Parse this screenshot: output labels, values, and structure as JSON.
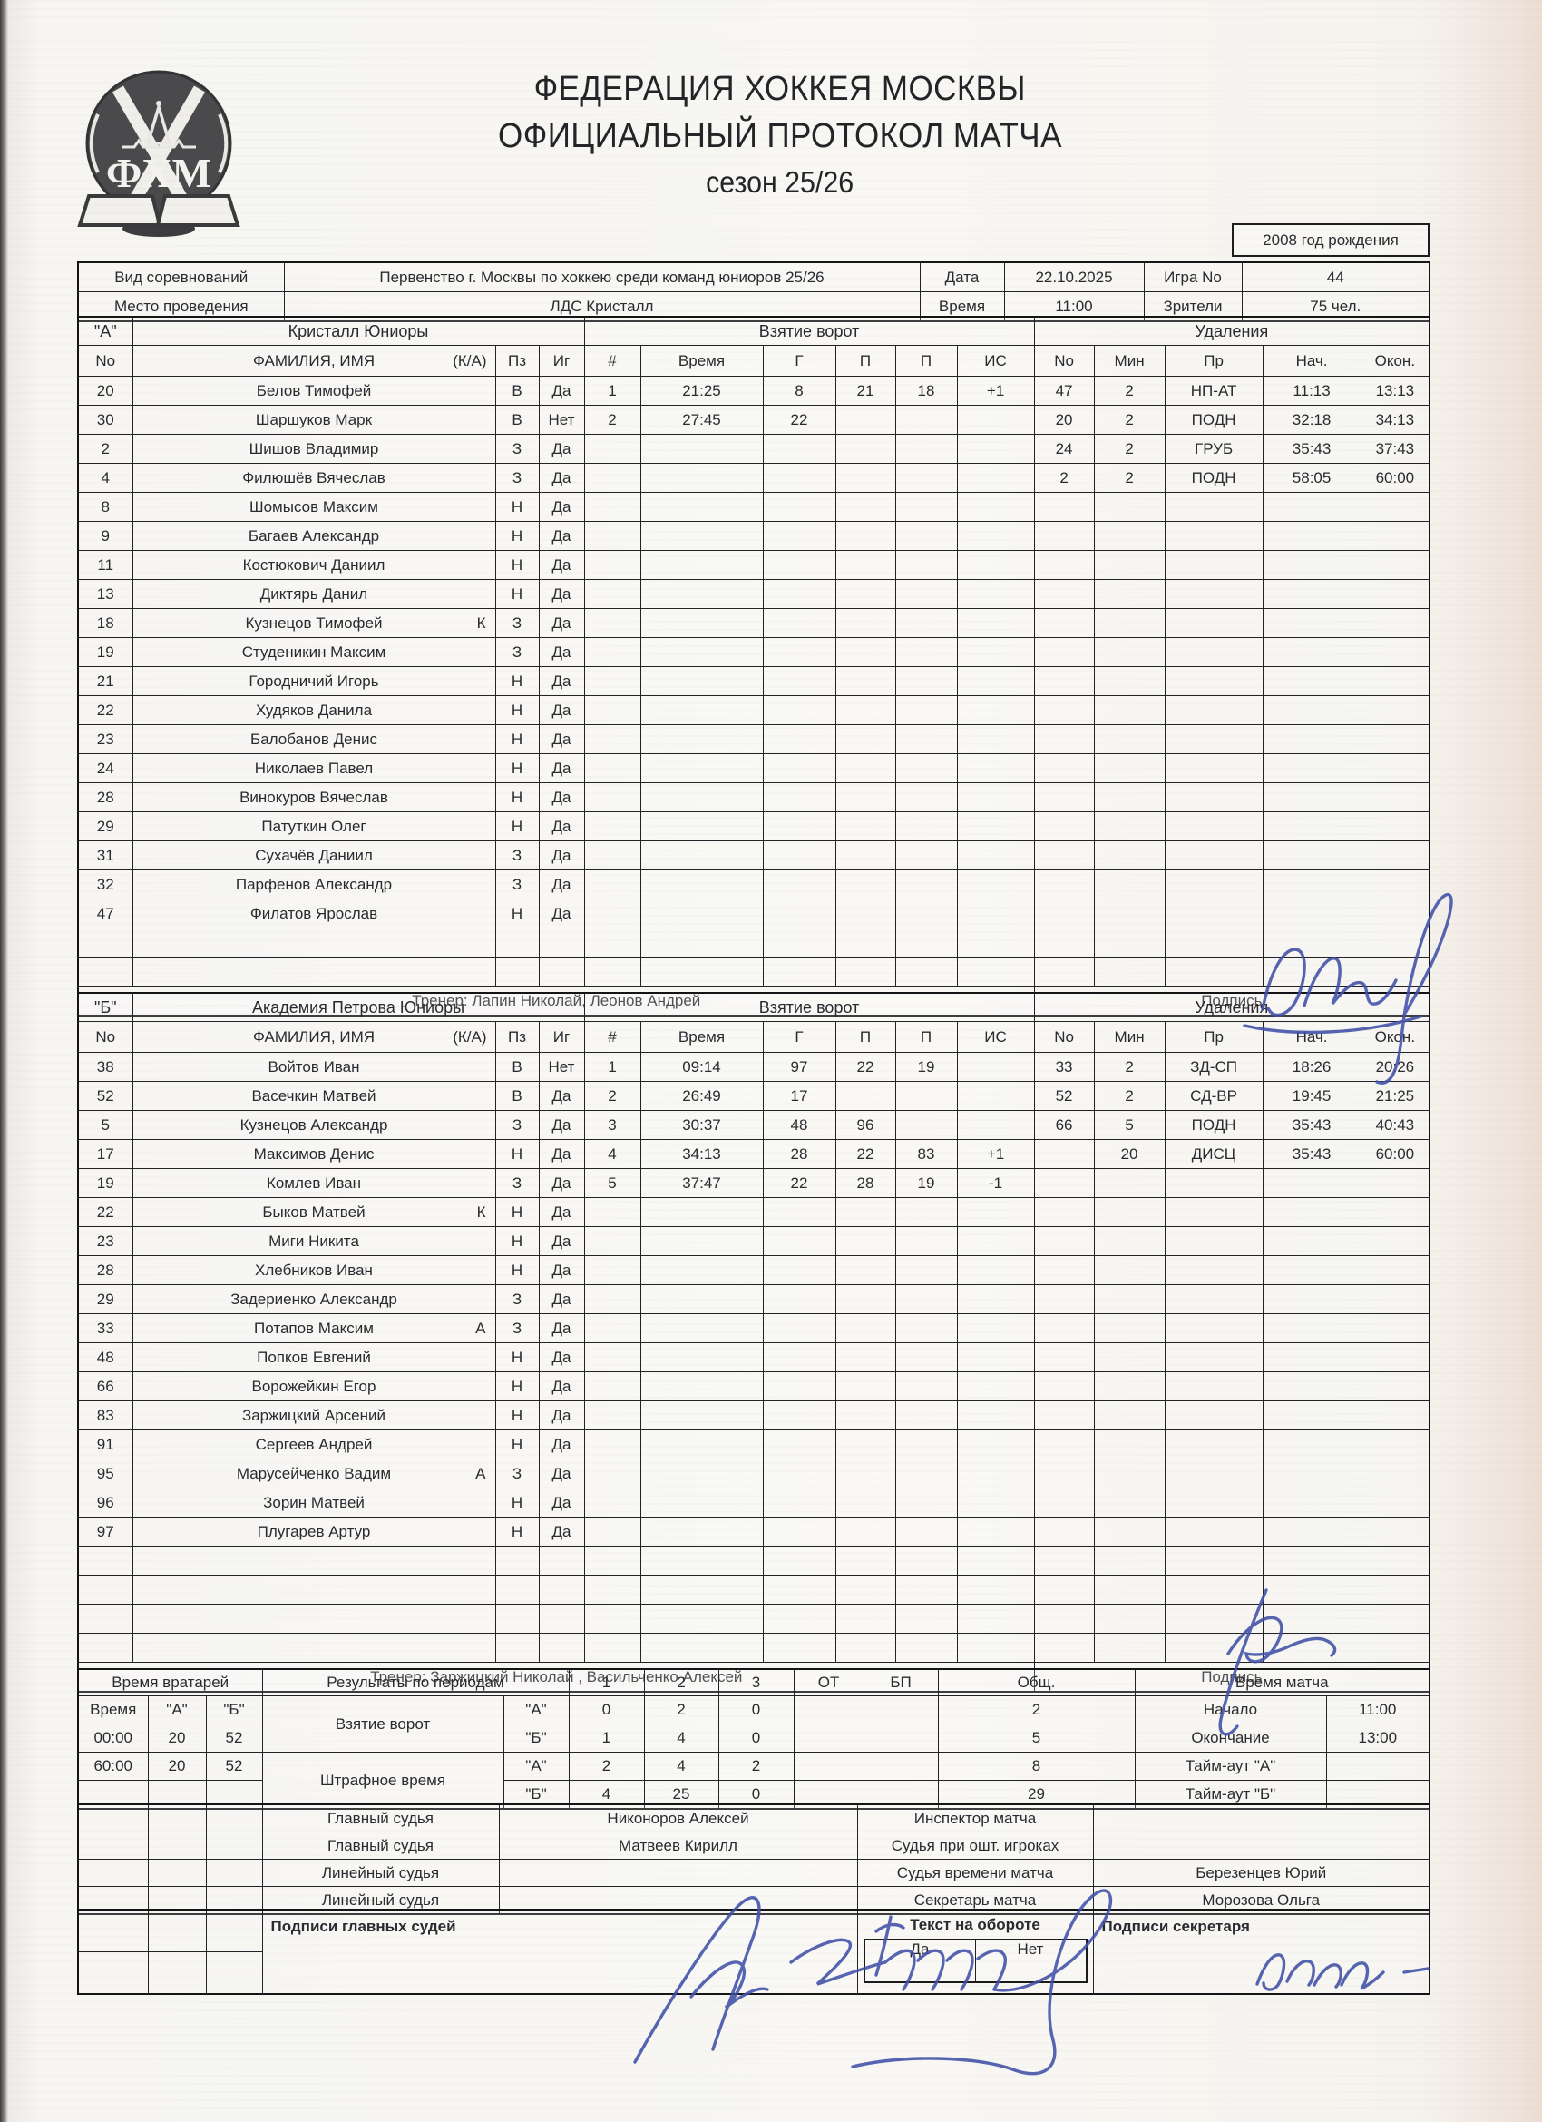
{
  "page": {
    "title_line1": "ФЕДЕРАЦИЯ ХОККЕЯ МОСКВЫ",
    "title_line2": "ОФИЦИАЛЬНЫЙ ПРОТОКОЛ МАТЧА",
    "title_line3": "сезон 25/26",
    "birth_year": "2008 год рождения",
    "logo_text": "ФХМ"
  },
  "info": {
    "competition_label": "Вид соревнований",
    "competition": "Первенство г. Москвы по хоккею среди команд юниоров 25/26",
    "date_label": "Дата",
    "date": "22.10.2025",
    "game_label": "Игра No",
    "game": "44",
    "venue_label": "Место проведения",
    "venue": "ЛДС Кристалл",
    "time_label": "Время",
    "time": "11:00",
    "spectators_label": "Зрители",
    "spectators": "75 чел."
  },
  "roster_labels": {
    "goals_section": "Взятие ворот",
    "penalties_section": "Удаления",
    "no": "No",
    "name": "ФАМИЛИЯ, ИМЯ",
    "ka": "(К/А)",
    "pos": "Пз",
    "ig": "Иг",
    "num": "#",
    "time": "Время",
    "g": "Г",
    "a1": "П",
    "a2": "П",
    "is": "ИС",
    "pen_no": "No",
    "pen_min": "Мин",
    "pen_code": "Пр",
    "pen_start": "Нач.",
    "pen_end": "Окон.",
    "signature_label": "Подпись"
  },
  "team_a": {
    "letter": "\"А\"",
    "name": "Кристалл Юниоры",
    "coach": "Тренер: Лапин Николай, Леонов Андрей",
    "empty_rows": 2,
    "players": [
      {
        "no": "20",
        "name": "Белов Тимофей",
        "ka": "",
        "pos": "В",
        "ig": "Да"
      },
      {
        "no": "30",
        "name": "Шаршуков Марк",
        "ka": "",
        "pos": "В",
        "ig": "Нет"
      },
      {
        "no": "2",
        "name": "Шишов Владимир",
        "ka": "",
        "pos": "З",
        "ig": "Да"
      },
      {
        "no": "4",
        "name": "Филюшёв Вячеслав",
        "ka": "",
        "pos": "З",
        "ig": "Да"
      },
      {
        "no": "8",
        "name": "Шомысов Максим",
        "ka": "",
        "pos": "Н",
        "ig": "Да"
      },
      {
        "no": "9",
        "name": "Багаев Александр",
        "ka": "",
        "pos": "Н",
        "ig": "Да"
      },
      {
        "no": "11",
        "name": "Костюкович Даниил",
        "ka": "",
        "pos": "Н",
        "ig": "Да"
      },
      {
        "no": "13",
        "name": "Диктярь Данил",
        "ka": "",
        "pos": "Н",
        "ig": "Да"
      },
      {
        "no": "18",
        "name": "Кузнецов Тимофей",
        "ka": "К",
        "pos": "З",
        "ig": "Да"
      },
      {
        "no": "19",
        "name": "Студеникин Максим",
        "ka": "",
        "pos": "З",
        "ig": "Да"
      },
      {
        "no": "21",
        "name": "Городничий Игорь",
        "ka": "",
        "pos": "Н",
        "ig": "Да"
      },
      {
        "no": "22",
        "name": "Худяков Данила",
        "ka": "",
        "pos": "Н",
        "ig": "Да"
      },
      {
        "no": "23",
        "name": "Балобанов Денис",
        "ka": "",
        "pos": "Н",
        "ig": "Да"
      },
      {
        "no": "24",
        "name": "Николаев Павел",
        "ka": "",
        "pos": "Н",
        "ig": "Да"
      },
      {
        "no": "28",
        "name": "Винокуров Вячеслав",
        "ka": "",
        "pos": "Н",
        "ig": "Да"
      },
      {
        "no": "29",
        "name": "Патуткин Олег",
        "ka": "",
        "pos": "Н",
        "ig": "Да"
      },
      {
        "no": "31",
        "name": "Сухачёв Даниил",
        "ka": "",
        "pos": "З",
        "ig": "Да"
      },
      {
        "no": "32",
        "name": "Парфенов Александр",
        "ka": "",
        "pos": "З",
        "ig": "Да"
      },
      {
        "no": "47",
        "name": "Филатов Ярослав",
        "ka": "",
        "pos": "Н",
        "ig": "Да"
      }
    ],
    "goals": [
      {
        "n": "1",
        "time": "21:25",
        "g": "8",
        "a1": "21",
        "a2": "18",
        "is": "+1"
      },
      {
        "n": "2",
        "time": "27:45",
        "g": "22",
        "a1": "",
        "a2": "",
        "is": ""
      }
    ],
    "penalties": [
      {
        "no": "47",
        "min": "2",
        "code": "НП-АТ",
        "start": "11:13",
        "end": "13:13"
      },
      {
        "no": "20",
        "min": "2",
        "code": "ПОДН",
        "start": "32:18",
        "end": "34:13"
      },
      {
        "no": "24",
        "min": "2",
        "code": "ГРУБ",
        "start": "35:43",
        "end": "37:43"
      },
      {
        "no": "2",
        "min": "2",
        "code": "ПОДН",
        "start": "58:05",
        "end": "60:00"
      }
    ]
  },
  "team_b": {
    "letter": "\"Б\"",
    "name": "Академия Петрова Юниоры",
    "coach": "Тренер: Заржицкий Николай , Васильченко Алексей",
    "empty_rows": 4,
    "players": [
      {
        "no": "38",
        "name": "Войтов Иван",
        "ka": "",
        "pos": "В",
        "ig": "Нет"
      },
      {
        "no": "52",
        "name": "Васечкин Матвей",
        "ka": "",
        "pos": "В",
        "ig": "Да"
      },
      {
        "no": "5",
        "name": "Кузнецов Александр",
        "ka": "",
        "pos": "З",
        "ig": "Да"
      },
      {
        "no": "17",
        "name": "Максимов Денис",
        "ka": "",
        "pos": "Н",
        "ig": "Да"
      },
      {
        "no": "19",
        "name": "Комлев Иван",
        "ka": "",
        "pos": "З",
        "ig": "Да"
      },
      {
        "no": "22",
        "name": "Быков Матвей",
        "ka": "К",
        "pos": "Н",
        "ig": "Да"
      },
      {
        "no": "23",
        "name": "Миги Никита",
        "ka": "",
        "pos": "Н",
        "ig": "Да"
      },
      {
        "no": "28",
        "name": "Хлебников Иван",
        "ka": "",
        "pos": "Н",
        "ig": "Да"
      },
      {
        "no": "29",
        "name": "Задериенко Александр",
        "ka": "",
        "pos": "З",
        "ig": "Да"
      },
      {
        "no": "33",
        "name": "Потапов Максим",
        "ka": "А",
        "pos": "З",
        "ig": "Да"
      },
      {
        "no": "48",
        "name": "Попков Евгений",
        "ka": "",
        "pos": "Н",
        "ig": "Да"
      },
      {
        "no": "66",
        "name": "Ворожейкин Егор",
        "ka": "",
        "pos": "Н",
        "ig": "Да"
      },
      {
        "no": "83",
        "name": "Заржицкий Арсений",
        "ka": "",
        "pos": "Н",
        "ig": "Да"
      },
      {
        "no": "91",
        "name": "Сергеев Андрей",
        "ka": "",
        "pos": "Н",
        "ig": "Да"
      },
      {
        "no": "95",
        "name": "Марусейченко Вадим",
        "ka": "А",
        "pos": "З",
        "ig": "Да"
      },
      {
        "no": "96",
        "name": "Зорин Матвей",
        "ka": "",
        "pos": "Н",
        "ig": "Да"
      },
      {
        "no": "97",
        "name": "Плугарев Артур",
        "ka": "",
        "pos": "Н",
        "ig": "Да"
      }
    ],
    "goals": [
      {
        "n": "1",
        "time": "09:14",
        "g": "97",
        "a1": "22",
        "a2": "19",
        "is": ""
      },
      {
        "n": "2",
        "time": "26:49",
        "g": "17",
        "a1": "",
        "a2": "",
        "is": ""
      },
      {
        "n": "3",
        "time": "30:37",
        "g": "48",
        "a1": "96",
        "a2": "",
        "is": ""
      },
      {
        "n": "4",
        "time": "34:13",
        "g": "28",
        "a1": "22",
        "a2": "83",
        "is": "+1"
      },
      {
        "n": "5",
        "time": "37:47",
        "g": "22",
        "a1": "28",
        "a2": "19",
        "is": "-1"
      }
    ],
    "penalties": [
      {
        "no": "33",
        "min": "2",
        "code": "ЗД-СП",
        "start": "18:26",
        "end": "20:26"
      },
      {
        "no": "52",
        "min": "2",
        "code": "СД-ВР",
        "start": "19:45",
        "end": "21:25"
      },
      {
        "no": "66",
        "min": "5",
        "code": "ПОДН",
        "start": "35:43",
        "end": "40:43"
      },
      {
        "no": "",
        "min": "20",
        "code": "ДИСЦ",
        "start": "35:43",
        "end": "60:00"
      }
    ]
  },
  "summary": {
    "goalie_time_label": "Время вратарей",
    "periods_label": "Результаты по периодам",
    "period_cols": [
      "1",
      "2",
      "3",
      "ОТ",
      "БП",
      "Общ."
    ],
    "match_time_label": "Время матча",
    "goalie_header": [
      "Время",
      "\"А\"",
      "\"Б\""
    ],
    "goalie_rows": [
      [
        "00:00",
        "20",
        "52"
      ],
      [
        "60:00",
        "20",
        "52"
      ]
    ],
    "goals_row_label": "Взятие ворот",
    "penalty_row_label": "Штрафное время",
    "team_a_label": "\"А\"",
    "team_b_label": "\"Б\"",
    "goals_a": [
      "0",
      "2",
      "0",
      "",
      "",
      "2"
    ],
    "goals_b": [
      "1",
      "4",
      "0",
      "",
      "",
      "5"
    ],
    "pens_a": [
      "2",
      "4",
      "2",
      "",
      "",
      "8"
    ],
    "pens_b": [
      "4",
      "25",
      "0",
      "",
      "",
      "29"
    ],
    "start_label": "Начало",
    "start": "11:00",
    "end_label": "Окончание",
    "end": "13:00",
    "timeout_a_label": "Тайм-аут \"А\"",
    "timeout_a": "",
    "timeout_b_label": "Тайм-аут \"Б\"",
    "timeout_b": ""
  },
  "officials": {
    "rows": [
      {
        "label": "Главный судья",
        "name": "Никоноров Алексей",
        "label2": "Инспектор матча",
        "name2": ""
      },
      {
        "label": "Главный судья",
        "name": "Матвеев Кирилл",
        "label2": "Судья при ошт. игроках",
        "name2": ""
      },
      {
        "label": "Линейный судья",
        "name": "",
        "label2": "Судья времени матча",
        "name2": "Березенцев Юрий"
      },
      {
        "label": "Линейный судья",
        "name": "",
        "label2": "Секретарь матча",
        "name2": "Морозова Ольга"
      }
    ]
  },
  "signatures": {
    "judges_label": "Подписи главных судей",
    "reverse_label": "Текст на обороте",
    "yes": "Да",
    "no": "Нет",
    "secretary_label": "Подписи секретаря",
    "ink_color": "#4050a8"
  }
}
